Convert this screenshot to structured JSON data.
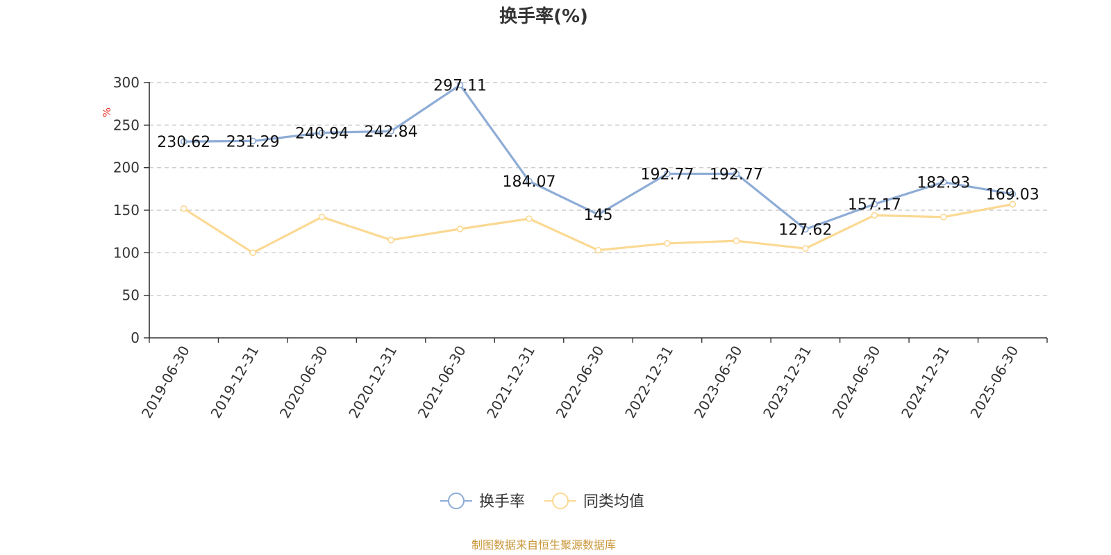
{
  "colors": {
    "series_primary": "#8eacd6",
    "series_secondary": "#fbd993",
    "axis": "#333333",
    "grid": "#cccccc",
    "unit_label": "#e8322b",
    "source_text": "#c9973a"
  },
  "chart_data": {
    "type": "line",
    "title": "换手率(%)",
    "ylabel": "%",
    "xlabel": "",
    "ylim": [
      0,
      300
    ],
    "y_ticks": [
      "0",
      "50",
      "100",
      "150",
      "200",
      "250",
      "300"
    ],
    "grid": true,
    "legend_position": "bottom-center",
    "categories": [
      "2019-06-30",
      "2019-12-31",
      "2020-06-30",
      "2020-12-31",
      "2021-06-30",
      "2021-12-31",
      "2022-06-30",
      "2022-12-31",
      "2023-06-30",
      "2023-12-31",
      "2024-06-30",
      "2024-12-31",
      "2025-06-30"
    ],
    "series": [
      {
        "name": "换手率",
        "values": [
          230.62,
          231.29,
          240.94,
          242.84,
          297.11,
          184.07,
          145,
          192.77,
          192.77,
          127.62,
          157.17,
          182.93,
          169.03
        ],
        "labels": [
          "230.62",
          "231.29",
          "240.94",
          "242.84",
          "297.11",
          "184.07",
          "145",
          "192.77",
          "192.77",
          "127.62",
          "157.17",
          "182.93",
          "169.03"
        ],
        "color": "#8eacd6"
      },
      {
        "name": "同类均值",
        "values": [
          152,
          100,
          142,
          115,
          128,
          140,
          103,
          111,
          114,
          105,
          144,
          142,
          157
        ],
        "color": "#fbd993"
      }
    ]
  },
  "footer": {
    "source": "制图数据来自恒生聚源数据库"
  }
}
